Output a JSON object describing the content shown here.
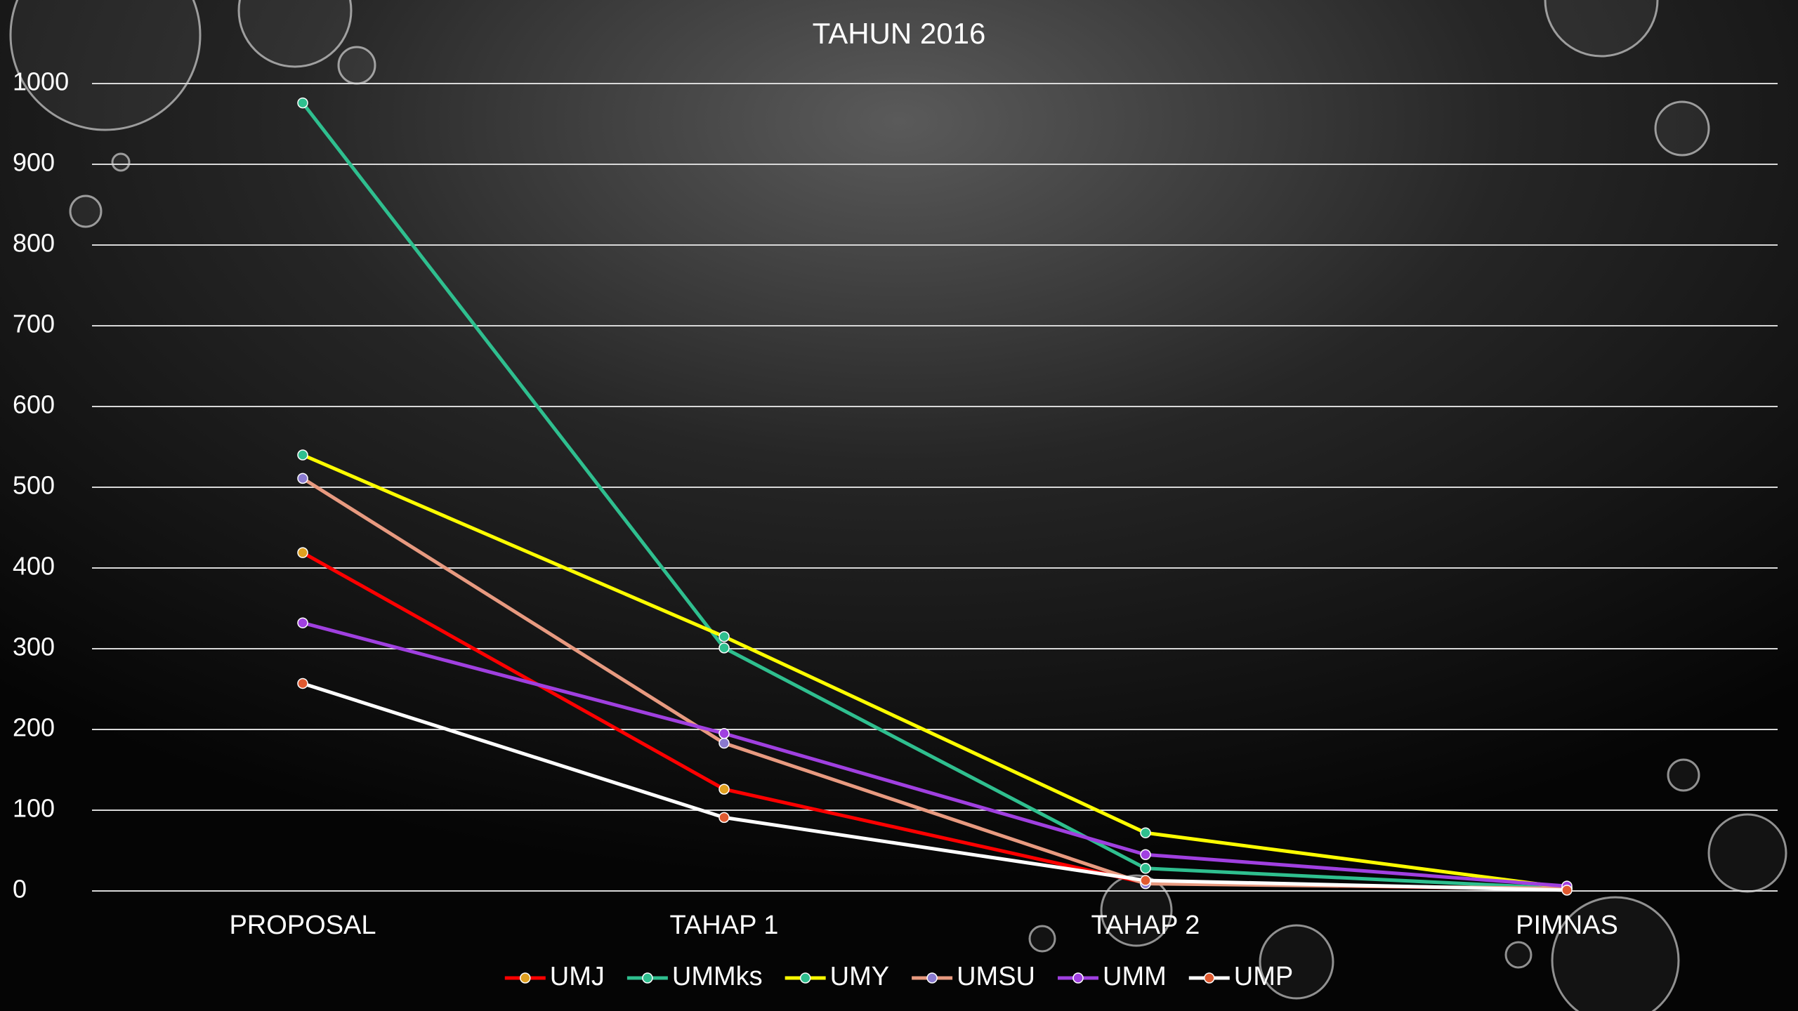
{
  "chart_data": {
    "type": "line",
    "title": "TAHUN 2016",
    "categories": [
      "PROPOSAL",
      "TAHAP 1",
      "TAHAP 2",
      "PIMNAS"
    ],
    "series": [
      {
        "name": "UMJ",
        "color": "#ff0000",
        "marker_color": "#e0a020",
        "values": [
          419,
          126,
          10,
          2
        ]
      },
      {
        "name": "UMMks",
        "color": "#2fbf8f",
        "marker_color": "#2fbf8f",
        "values": [
          976,
          301,
          28,
          3
        ]
      },
      {
        "name": "UMY",
        "color": "#ffff00",
        "marker_color": "#2fbf8f",
        "values": [
          540,
          315,
          72,
          4
        ]
      },
      {
        "name": "UMSU",
        "color": "#e89a80",
        "marker_color": "#8a7ad0",
        "values": [
          511,
          183,
          9,
          3
        ]
      },
      {
        "name": "UMM",
        "color": "#a040e0",
        "marker_color": "#a040e0",
        "values": [
          332,
          195,
          45,
          6
        ]
      },
      {
        "name": "UMP",
        "color": "#ffffff",
        "marker_color": "#e05a30",
        "values": [
          257,
          91,
          13,
          1
        ]
      }
    ],
    "ylim": [
      0,
      1000
    ],
    "yticks": [
      0,
      100,
      200,
      300,
      400,
      500,
      600,
      700,
      800,
      900,
      1000
    ],
    "grid": true,
    "legend": "bottom"
  }
}
